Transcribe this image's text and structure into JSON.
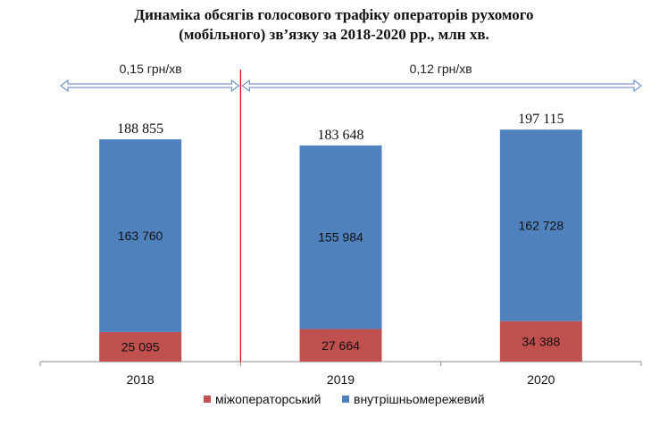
{
  "chart_data": {
    "type": "bar",
    "stacked": true,
    "title_line1": "Динаміка обсягів голосового трафіку операторів рухомого",
    "title_line2": "(мобільного) зв’язку за 2018-2020 рр., млн хв.",
    "categories": [
      "2018",
      "2019",
      "2020"
    ],
    "series": [
      {
        "name": "міжоператорський",
        "values": [
          25095,
          27664,
          34388
        ],
        "labels": [
          "25 095",
          "27 664",
          "34 388"
        ],
        "color": "#c0504d"
      },
      {
        "name": "внутрішньомережевий",
        "values": [
          163760,
          155984,
          162728
        ],
        "labels": [
          "163 760",
          "155 984",
          "162 728"
        ],
        "color": "#4f81bd"
      }
    ],
    "totals": [
      188855,
      183648,
      197115
    ],
    "total_labels": [
      "188 855",
      "183 648",
      "197 115"
    ],
    "ylim": [
      0,
      220000
    ],
    "legend_position": "bottom",
    "annotations": [
      {
        "text": "0,15 грн/хв",
        "applies_to": [
          "2018"
        ]
      },
      {
        "text": "0,12 грн/хв",
        "applies_to": [
          "2019",
          "2020"
        ]
      }
    ],
    "divider_color": "#e00000",
    "arrow_color": "#5b7fbf"
  }
}
